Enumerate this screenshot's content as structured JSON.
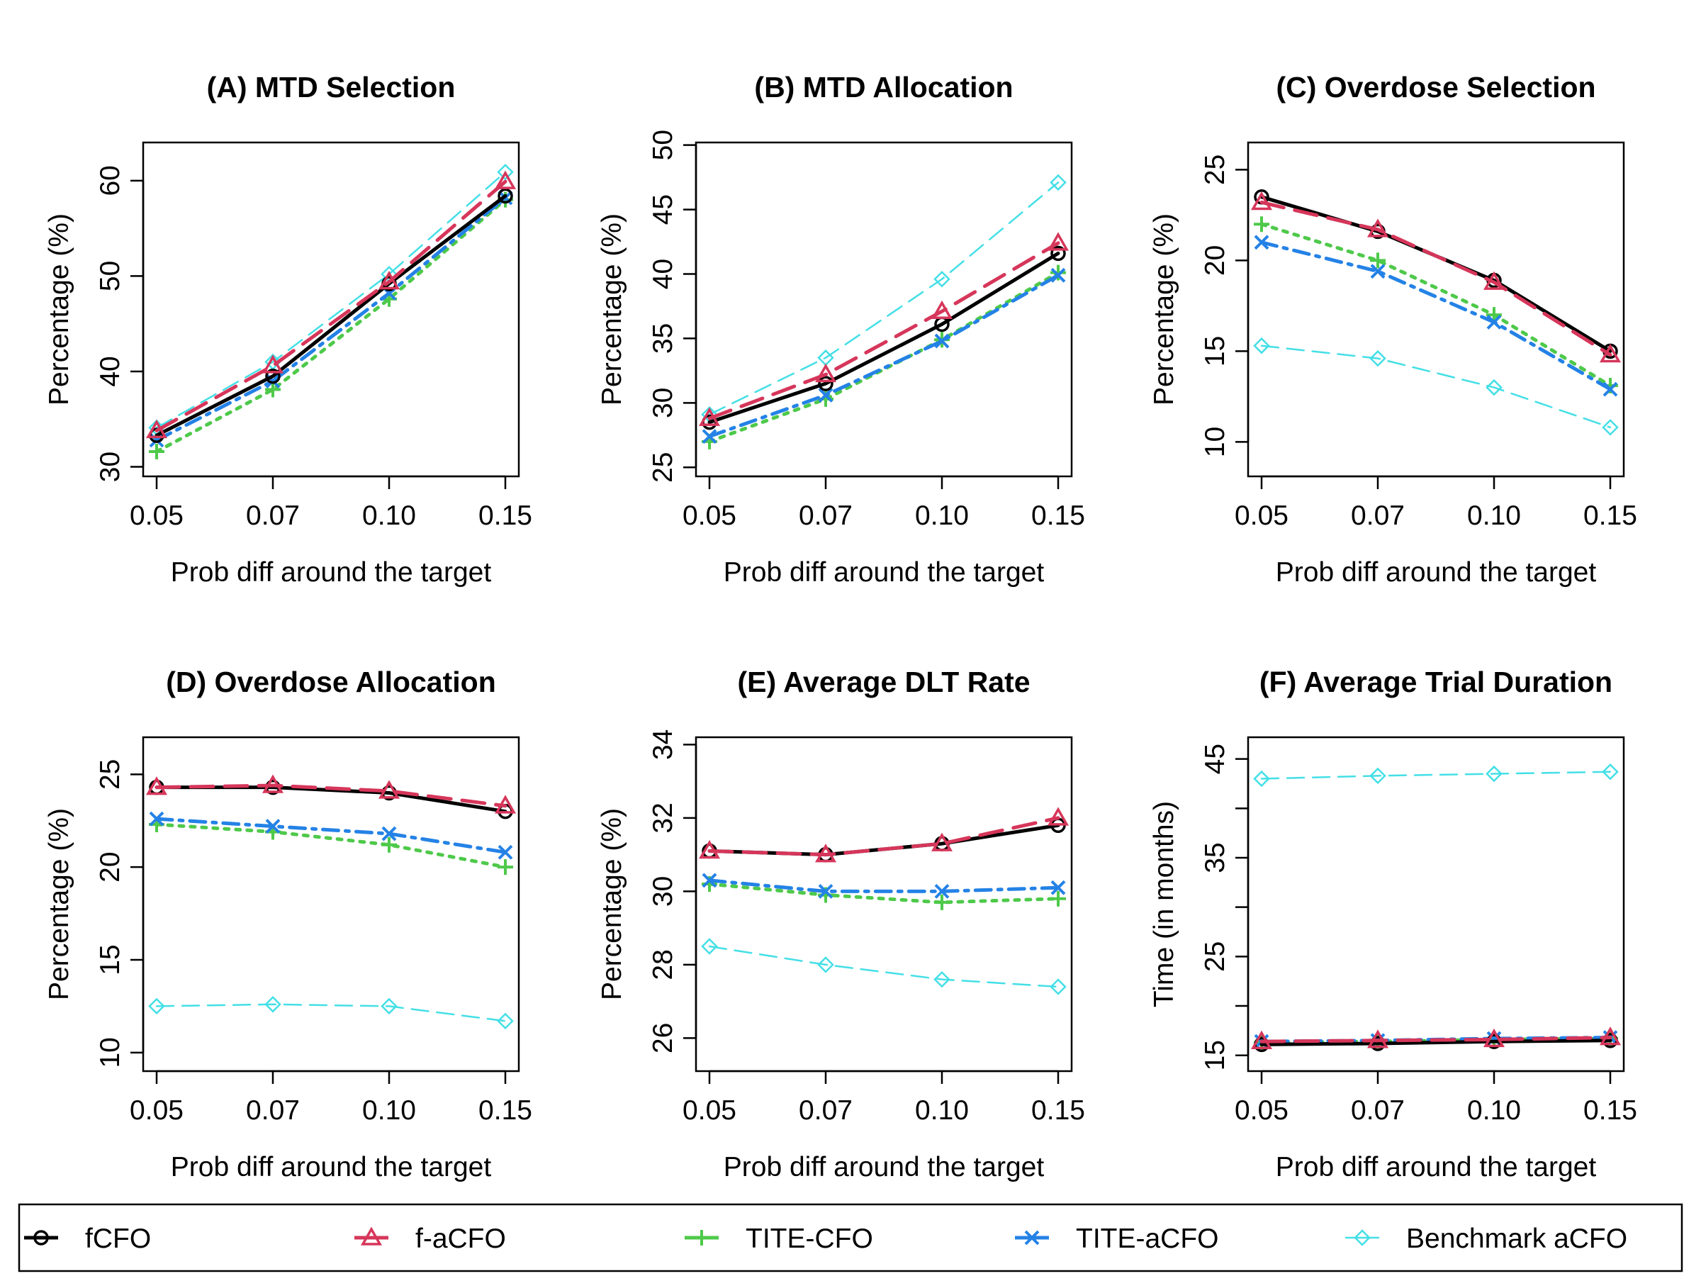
{
  "x_ticks": [
    "0.05",
    "0.07",
    "0.10",
    "0.15"
  ],
  "series": [
    {
      "key": "fCFO",
      "name": "fCFO",
      "color": "#000000",
      "marker": "circle",
      "dash": "solid",
      "line_width": "heavy"
    },
    {
      "key": "faCFO",
      "name": "f-aCFO",
      "color": "#d6365a",
      "marker": "triangle",
      "dash": "longdash",
      "line_width": "heavy"
    },
    {
      "key": "TITECFO",
      "name": "TITE-CFO",
      "color": "#4ec94a",
      "marker": "plus",
      "dash": "dotted",
      "line_width": "heavy"
    },
    {
      "key": "TITEaCFO",
      "name": "TITE-aCFO",
      "color": "#2482e6",
      "marker": "x",
      "dash": "dotdash",
      "line_width": "heavy"
    },
    {
      "key": "Bench",
      "name": "Benchmark aCFO",
      "color": "#44dfe6",
      "marker": "diamond",
      "dash": "dashed",
      "line_width": "thin"
    }
  ],
  "chart_data": [
    {
      "type": "line",
      "title": "(A) MTD Selection",
      "xlabel": "Prob diff around the target",
      "ylabel": "Percentage (%)",
      "x": [
        0.05,
        0.07,
        0.1,
        0.15
      ],
      "ylim": [
        29,
        64
      ],
      "yticks": [
        30,
        40,
        50,
        60
      ],
      "series": [
        {
          "name": "fCFO",
          "values": [
            33.3,
            39.5,
            49.2,
            58.4
          ]
        },
        {
          "name": "f-aCFO",
          "values": [
            33.8,
            40.6,
            49.4,
            59.9
          ]
        },
        {
          "name": "TITE-CFO",
          "values": [
            31.6,
            38.1,
            47.6,
            58.0
          ]
        },
        {
          "name": "TITE-aCFO",
          "values": [
            32.8,
            39.0,
            48.2,
            58.2
          ]
        },
        {
          "name": "Benchmark aCFO",
          "values": [
            34.1,
            41.0,
            50.2,
            60.9
          ]
        }
      ]
    },
    {
      "type": "line",
      "title": "(B) MTD Allocation",
      "xlabel": "Prob diff around the target",
      "ylabel": "Percentage (%)",
      "x": [
        0.05,
        0.07,
        0.1,
        0.15
      ],
      "ylim": [
        24.3,
        50.2
      ],
      "yticks": [
        25,
        30,
        35,
        40,
        45,
        50
      ],
      "series": [
        {
          "name": "fCFO",
          "values": [
            28.5,
            31.5,
            36.1,
            41.6
          ]
        },
        {
          "name": "f-aCFO",
          "values": [
            28.8,
            32.2,
            37.1,
            42.4
          ]
        },
        {
          "name": "TITE-CFO",
          "values": [
            27.0,
            30.3,
            34.9,
            40.1
          ]
        },
        {
          "name": "TITE-aCFO",
          "values": [
            27.4,
            30.6,
            34.8,
            39.9
          ]
        },
        {
          "name": "Benchmark aCFO",
          "values": [
            29.1,
            33.5,
            39.6,
            47.1
          ]
        }
      ]
    },
    {
      "type": "line",
      "title": "(C) Overdose Selection",
      "xlabel": "Prob diff around the target",
      "ylabel": "Percentage (%)",
      "x": [
        0.05,
        0.07,
        0.1,
        0.15
      ],
      "ylim": [
        8.1,
        26.5
      ],
      "yticks": [
        10,
        15,
        20,
        25
      ],
      "series": [
        {
          "name": "fCFO",
          "values": [
            23.5,
            21.6,
            18.9,
            15.0
          ]
        },
        {
          "name": "f-aCFO",
          "values": [
            23.2,
            21.7,
            18.8,
            14.8
          ]
        },
        {
          "name": "TITE-CFO",
          "values": [
            22.0,
            20.0,
            17.0,
            13.1
          ]
        },
        {
          "name": "TITE-aCFO",
          "values": [
            21.0,
            19.4,
            16.6,
            12.9
          ]
        },
        {
          "name": "Benchmark aCFO",
          "values": [
            15.3,
            14.6,
            13.0,
            10.8
          ]
        }
      ]
    },
    {
      "type": "line",
      "title": "(D) Overdose Allocation",
      "xlabel": "Prob diff around the target",
      "ylabel": "Percentage (%)",
      "x": [
        0.05,
        0.07,
        0.1,
        0.15
      ],
      "ylim": [
        9.0,
        27.0
      ],
      "yticks": [
        10,
        15,
        20,
        25
      ],
      "series": [
        {
          "name": "fCFO",
          "values": [
            24.3,
            24.3,
            24.0,
            23.0
          ]
        },
        {
          "name": "f-aCFO",
          "values": [
            24.3,
            24.4,
            24.1,
            23.3
          ]
        },
        {
          "name": "TITE-CFO",
          "values": [
            22.3,
            21.9,
            21.2,
            20.0
          ]
        },
        {
          "name": "TITE-aCFO",
          "values": [
            22.6,
            22.2,
            21.8,
            20.8
          ]
        },
        {
          "name": "Benchmark aCFO",
          "values": [
            12.5,
            12.6,
            12.5,
            11.7
          ]
        }
      ]
    },
    {
      "type": "line",
      "title": "(E) Average DLT Rate",
      "xlabel": "Prob diff around the target",
      "ylabel": "Percentage (%)",
      "x": [
        0.05,
        0.07,
        0.1,
        0.15
      ],
      "ylim": [
        25.1,
        34.2
      ],
      "yticks": [
        26,
        28,
        30,
        32,
        34
      ],
      "series": [
        {
          "name": "fCFO",
          "values": [
            31.1,
            31.0,
            31.3,
            31.8
          ]
        },
        {
          "name": "f-aCFO",
          "values": [
            31.1,
            31.0,
            31.3,
            32.0
          ]
        },
        {
          "name": "TITE-CFO",
          "values": [
            30.2,
            29.9,
            29.7,
            29.8
          ]
        },
        {
          "name": "TITE-aCFO",
          "values": [
            30.3,
            30.0,
            30.0,
            30.1
          ]
        },
        {
          "name": "Benchmark aCFO",
          "values": [
            28.5,
            28.0,
            27.6,
            27.4
          ]
        }
      ]
    },
    {
      "type": "line",
      "title": "(F) Average Trial Duration",
      "xlabel": "Prob diff around the target",
      "ylabel": "Time (in months)",
      "x": [
        0.05,
        0.07,
        0.1,
        0.15
      ],
      "ylim": [
        13.4,
        47.2
      ],
      "yticks": [
        15,
        20,
        25,
        30,
        35,
        40,
        45
      ],
      "ytick_labels": [
        "15",
        "",
        "25",
        "",
        "35",
        "",
        "45"
      ],
      "series": [
        {
          "name": "fCFO",
          "values": [
            16.1,
            16.2,
            16.4,
            16.5
          ]
        },
        {
          "name": "f-aCFO",
          "values": [
            16.4,
            16.5,
            16.6,
            16.8
          ]
        },
        {
          "name": "TITE-CFO",
          "values": [
            16.3,
            16.4,
            16.6,
            16.7
          ]
        },
        {
          "name": "TITE-aCFO",
          "values": [
            16.4,
            16.5,
            16.7,
            16.8
          ]
        },
        {
          "name": "Benchmark aCFO",
          "values": [
            43.0,
            43.3,
            43.5,
            43.7
          ]
        }
      ]
    }
  ]
}
